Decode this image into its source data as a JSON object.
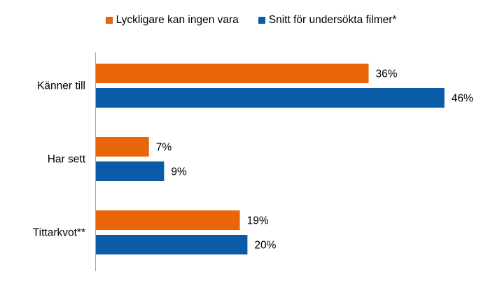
{
  "chart_data": {
    "type": "bar",
    "orientation": "horizontal",
    "categories": [
      "Känner till",
      "Har sett",
      "Tittarkvot**"
    ],
    "series": [
      {
        "name": "Lyckligare kan ingen vara",
        "values": [
          36,
          7,
          19
        ],
        "labels": [
          "36%",
          "7%",
          "19%"
        ],
        "color": "#E8650A"
      },
      {
        "name": "Snitt för undersökta filmer*",
        "values": [
          46,
          9,
          20
        ],
        "labels": [
          "46%",
          "9%",
          "20%"
        ],
        "color": "#0A5CA8"
      }
    ],
    "xlim": [
      0,
      50
    ],
    "unit": "%",
    "legend_position": "top",
    "grid": false
  }
}
